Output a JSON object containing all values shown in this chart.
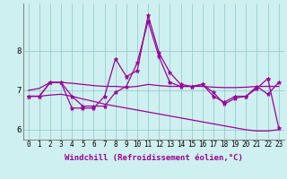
{
  "xlabel": "Windchill (Refroidissement éolien,°C)",
  "x_values": [
    0,
    1,
    2,
    3,
    4,
    5,
    6,
    7,
    8,
    9,
    10,
    11,
    12,
    13,
    14,
    15,
    16,
    17,
    18,
    19,
    20,
    21,
    22,
    23
  ],
  "line1_y": [
    6.85,
    6.85,
    7.2,
    7.2,
    6.85,
    6.6,
    6.6,
    6.6,
    6.95,
    7.1,
    7.7,
    8.75,
    7.85,
    7.2,
    7.1,
    7.1,
    7.15,
    6.85,
    6.7,
    6.85,
    6.85,
    7.1,
    6.9,
    7.2
  ],
  "line2_y": [
    6.85,
    6.85,
    7.2,
    7.2,
    6.55,
    6.55,
    6.55,
    6.85,
    7.8,
    7.35,
    7.5,
    8.9,
    7.95,
    7.45,
    7.15,
    7.1,
    7.15,
    6.95,
    6.65,
    6.8,
    6.85,
    7.05,
    7.3,
    6.05
  ],
  "line3_y": [
    7.0,
    7.05,
    7.2,
    7.2,
    7.18,
    7.15,
    7.12,
    7.1,
    7.1,
    7.08,
    7.1,
    7.15,
    7.12,
    7.1,
    7.1,
    7.1,
    7.1,
    7.08,
    7.07,
    7.07,
    7.08,
    7.1,
    7.1,
    7.1
  ],
  "line4_y": [
    6.85,
    6.85,
    6.88,
    6.9,
    6.85,
    6.78,
    6.72,
    6.65,
    6.6,
    6.55,
    6.5,
    6.45,
    6.4,
    6.35,
    6.3,
    6.25,
    6.2,
    6.15,
    6.1,
    6.05,
    6.0,
    5.97,
    5.97,
    6.0
  ],
  "line_color": "#990099",
  "bg_color": "#cff0f0",
  "grid_color": "#99cccc",
  "ylim": [
    5.75,
    9.2
  ],
  "yticks": [
    6,
    7,
    8
  ],
  "xlim": [
    -0.5,
    23.5
  ]
}
